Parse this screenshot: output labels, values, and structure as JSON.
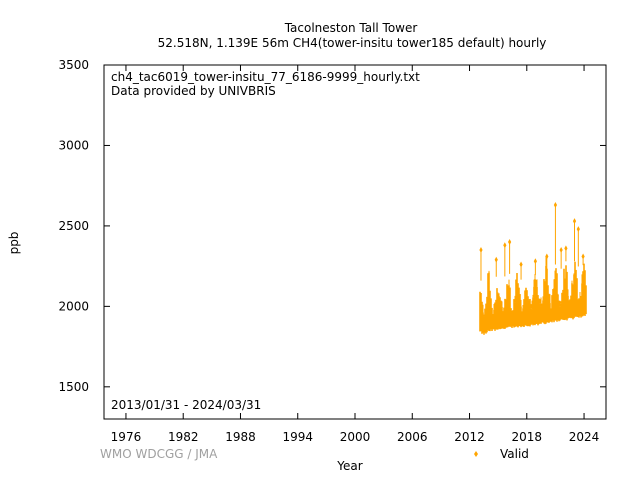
{
  "chart_data": {
    "type": "scatter",
    "title": "Tacolneston Tall Tower",
    "subtitle": "52.518N, 1.139E 56m    CH4(tower-insitu tower185 default) hourly",
    "xlabel": "Year",
    "ylabel": "ppb",
    "xlim": [
      1973.7,
      2026.3
    ],
    "ylim": [
      1300,
      3500
    ],
    "x_ticks": [
      1976,
      1982,
      1988,
      1994,
      2000,
      2006,
      2012,
      2018,
      2024
    ],
    "y_ticks": [
      1500,
      2000,
      2500,
      3000,
      3500
    ],
    "annotations": [
      "ch4_tac6019_tower-insitu_77_6186-9999_hourly.txt",
      "Data provided by UNIVBRIS",
      "2013/01/31 - 2024/03/31"
    ],
    "credit": "WMO WDCGG / JMA",
    "legend": {
      "position": "bottom-right",
      "entries": [
        {
          "name": "Valid",
          "color": "#ffa500"
        }
      ]
    },
    "series": [
      {
        "name": "Valid",
        "color": "#ffa500",
        "envelope": {
          "x": [
            2013.08,
            2013.5,
            2014.0,
            2014.5,
            2015.0,
            2015.5,
            2016.0,
            2016.5,
            2017.0,
            2017.5,
            2018.0,
            2018.5,
            2019.0,
            2019.5,
            2020.0,
            2020.5,
            2021.0,
            2021.5,
            2022.0,
            2022.5,
            2023.0,
            2023.5,
            2024.0,
            2024.25
          ],
          "baseline": [
            1860,
            1850,
            1860,
            1870,
            1875,
            1880,
            1885,
            1890,
            1890,
            1895,
            1900,
            1905,
            1905,
            1910,
            1915,
            1920,
            1925,
            1930,
            1935,
            1940,
            1945,
            1950,
            1960,
            1965
          ],
          "low": [
            1835,
            1820,
            1840,
            1845,
            1850,
            1855,
            1860,
            1865,
            1865,
            1870,
            1870,
            1875,
            1880,
            1885,
            1890,
            1895,
            1900,
            1905,
            1910,
            1915,
            1920,
            1925,
            1935,
            1940
          ],
          "high": [
            2220,
            2150,
            2250,
            2200,
            2240,
            2210,
            2250,
            2230,
            2230,
            2200,
            2230,
            2210,
            2240,
            2220,
            2270,
            2250,
            2300,
            2260,
            2330,
            2280,
            2320,
            2280,
            2300,
            2250
          ]
        },
        "spikes": [
          [
            2013.2,
            2350
          ],
          [
            2014.8,
            2290
          ],
          [
            2015.7,
            2380
          ],
          [
            2016.2,
            2400
          ],
          [
            2017.4,
            2260
          ],
          [
            2018.9,
            2280
          ],
          [
            2020.1,
            2310
          ],
          [
            2021.0,
            2630
          ],
          [
            2021.6,
            2350
          ],
          [
            2022.1,
            2360
          ],
          [
            2023.0,
            2530
          ],
          [
            2023.4,
            2480
          ],
          [
            2023.9,
            2310
          ]
        ]
      }
    ]
  }
}
